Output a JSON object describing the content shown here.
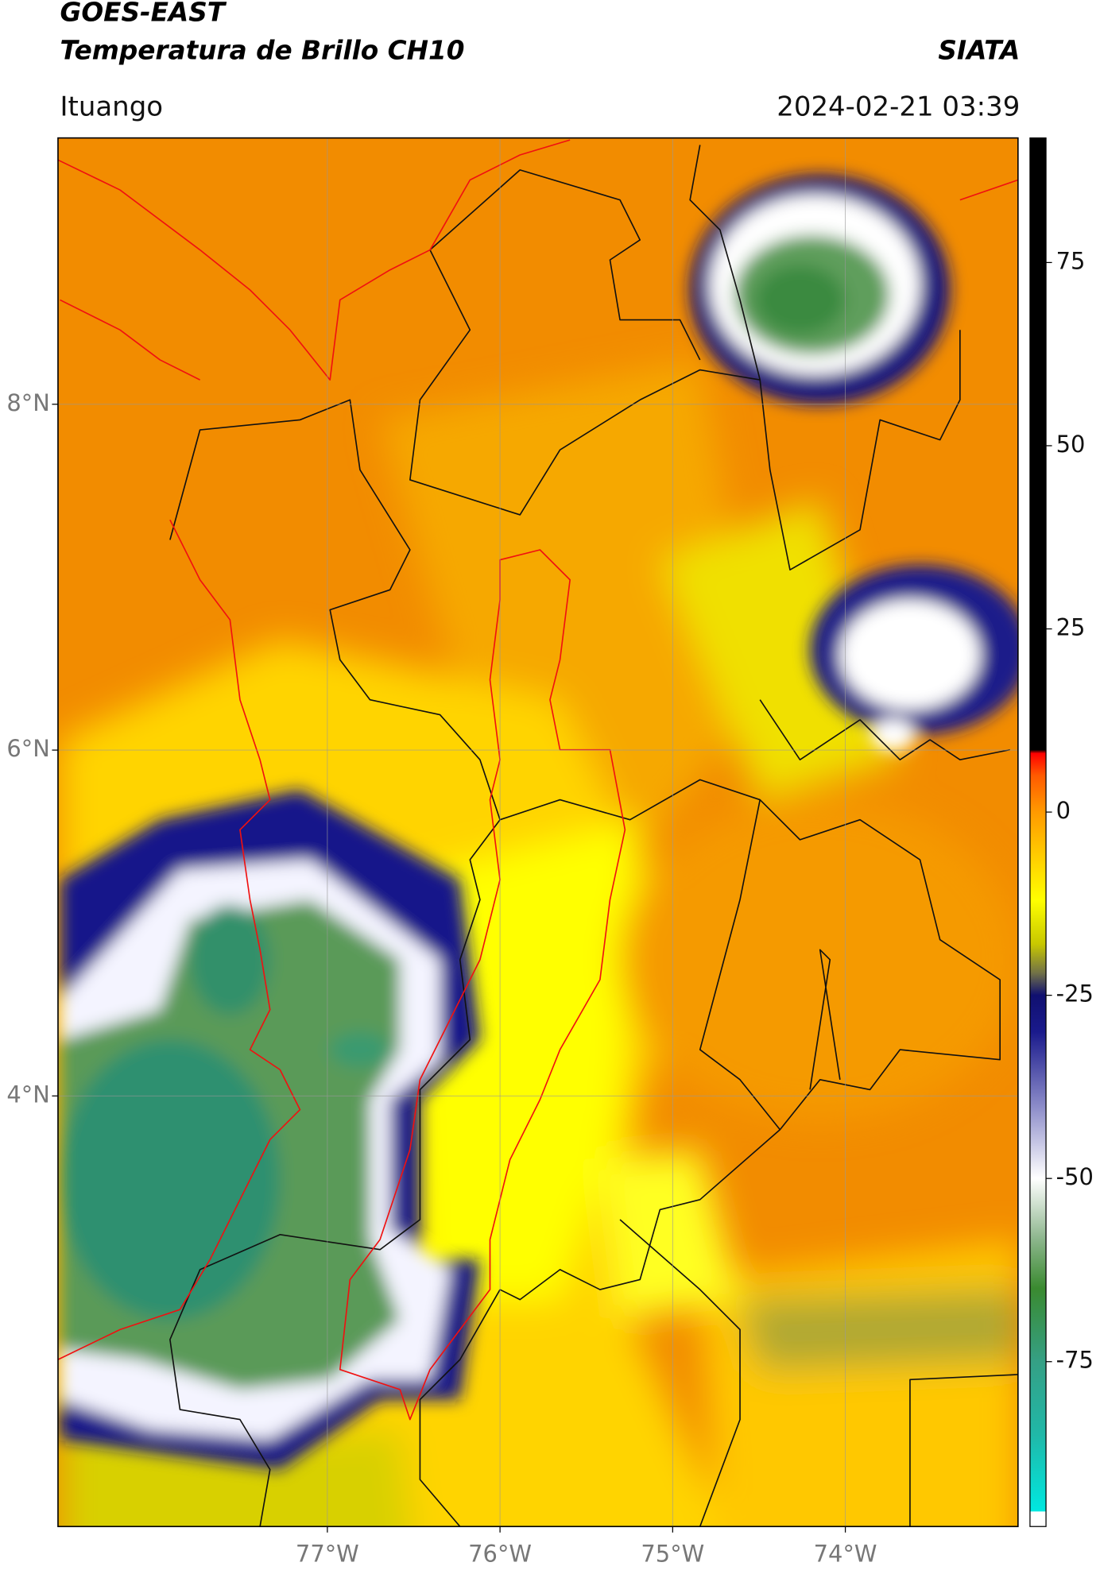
{
  "header": {
    "title_1": "GOES-EAST",
    "title_2": "Temperatura de Brillo CH10",
    "agency": "SIATA",
    "location": "Ituango",
    "datetime": "2024-02-21 03:39"
  },
  "map": {
    "lonlim": [
      -78.56,
      -73.0
    ],
    "latlim": [
      1.51,
      9.54
    ],
    "lon_ticks": [
      {
        "value": -77,
        "label": "77°W"
      },
      {
        "value": -76,
        "label": "76°W"
      },
      {
        "value": -75,
        "label": "75°W"
      },
      {
        "value": -74,
        "label": "74°W"
      }
    ],
    "lat_ticks": [
      {
        "value": 8,
        "label": "8°N"
      },
      {
        "value": 6,
        "label": "6°N"
      },
      {
        "value": 4,
        "label": "4°N"
      }
    ]
  },
  "colorbar": {
    "lim": [
      -97.5,
      92
    ],
    "ticks": [
      75,
      50,
      25,
      0,
      -25,
      -50,
      -75
    ],
    "stops": [
      {
        "value": -97.5,
        "color": "#ffffff"
      },
      {
        "value": -95.5,
        "color": "#ffffff"
      },
      {
        "value": -95.4,
        "color": "#00e8e0"
      },
      {
        "value": -85,
        "color": "#20b8a8"
      },
      {
        "value": -75,
        "color": "#35a085"
      },
      {
        "value": -65,
        "color": "#3a8a30"
      },
      {
        "value": -58,
        "color": "#90b890"
      },
      {
        "value": -50,
        "color": "#ffffff"
      },
      {
        "value": -40,
        "color": "#8a8ac8"
      },
      {
        "value": -30,
        "color": "#1a1a8c"
      },
      {
        "value": -25,
        "color": "#101070"
      },
      {
        "value": -22,
        "color": "#707048"
      },
      {
        "value": -18,
        "color": "#c8c800"
      },
      {
        "value": -12,
        "color": "#ffff00"
      },
      {
        "value": -5,
        "color": "#ffc400"
      },
      {
        "value": 0,
        "color": "#ff9a00"
      },
      {
        "value": 5,
        "color": "#ff5a00"
      },
      {
        "value": 8,
        "color": "#ff0000"
      },
      {
        "value": 8.5,
        "color": "#000000"
      },
      {
        "value": 92,
        "color": "#000000"
      }
    ]
  }
}
